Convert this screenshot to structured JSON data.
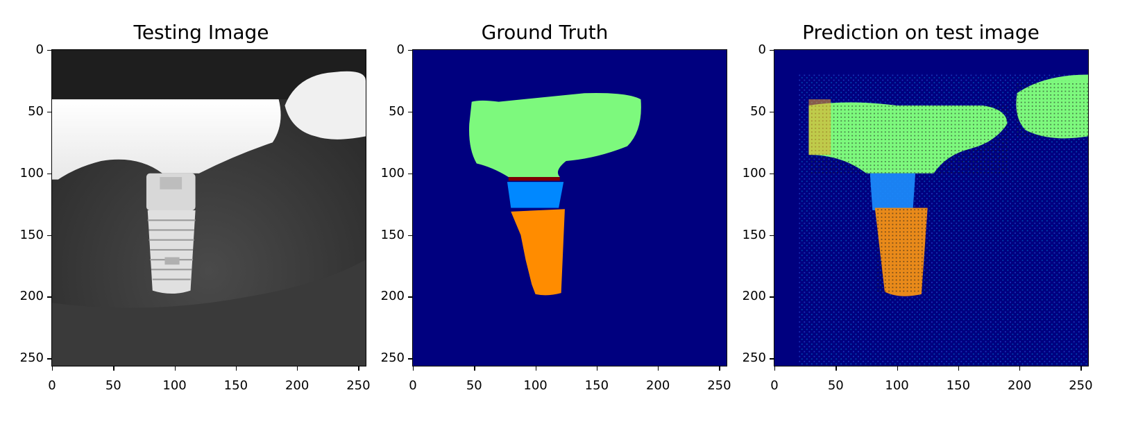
{
  "figure": {
    "panels": [
      {
        "title": "Testing Image",
        "content": "grayscale dental x-ray with implant"
      },
      {
        "title": "Ground Truth",
        "content": "segmentation mask"
      },
      {
        "title": "Prediction on test image",
        "content": "predicted segmentation"
      }
    ],
    "x_ticks": [
      "0",
      "50",
      "100",
      "150",
      "200",
      "250"
    ],
    "y_ticks": [
      "0",
      "50",
      "100",
      "150",
      "200",
      "250"
    ],
    "colors": {
      "background_class": "#00007f",
      "crown_class": "#7df97d",
      "abutment_top_class": "#7f0000",
      "abutment_class": "#0088ff",
      "implant_class": "#ff8c00"
    }
  }
}
